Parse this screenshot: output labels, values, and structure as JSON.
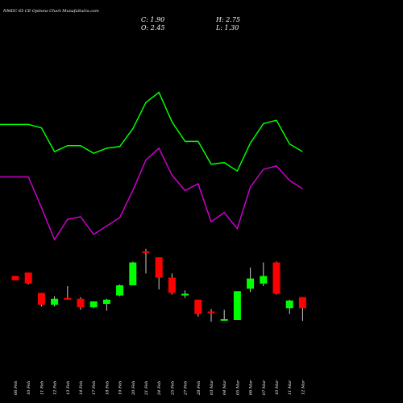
{
  "title": "NMDC 65 CE Options  Chart MunafaSutra.com",
  "ohlc": {
    "close": "C: 1.90",
    "high": "H: 2.75",
    "open": "O: 2.45",
    "low": "L: 1.30"
  },
  "colors": {
    "background": "#000000",
    "up": "#00ff00",
    "down": "#ff0000",
    "band_upper": "#00ff00",
    "band_lower": "#cc00cc",
    "wick": "#cccccc",
    "text": "#ffffff"
  },
  "chart_data": {
    "type": "candlestick",
    "categories": [
      "06 Feb",
      "10 Feb",
      "11 Feb",
      "12 Feb",
      "13 Feb",
      "14 Feb",
      "17 Feb",
      "18 Feb",
      "19 Feb",
      "20 Feb",
      "21 Feb",
      "24 Feb",
      "25 Feb",
      "27 Feb",
      "28 Feb",
      "03 Mar",
      "04 Mar",
      "05 Mar",
      "06 Mar",
      "07 Mar",
      "10 Mar",
      "11 Mar",
      "12 Mar"
    ],
    "candles": [
      {
        "open": 5.6,
        "high": 5.6,
        "low": 5.35,
        "close": 5.35
      },
      {
        "open": 5.8,
        "high": 5.8,
        "low": 5.1,
        "close": 5.15
      },
      {
        "open": 4.6,
        "high": 4.6,
        "low": 3.8,
        "close": 3.9
      },
      {
        "open": 3.9,
        "high": 4.4,
        "low": 3.8,
        "close": 4.25
      },
      {
        "open": 4.3,
        "high": 5.0,
        "low": 4.2,
        "close": 4.2
      },
      {
        "open": 4.25,
        "high": 4.35,
        "low": 3.6,
        "close": 3.75
      },
      {
        "open": 3.75,
        "high": 4.1,
        "low": 3.7,
        "close": 4.1
      },
      {
        "open": 3.95,
        "high": 4.25,
        "low": 3.55,
        "close": 4.2
      },
      {
        "open": 4.45,
        "high": 5.1,
        "low": 4.4,
        "close": 5.05
      },
      {
        "open": 5.05,
        "high": 6.45,
        "low": 5.05,
        "close": 6.4
      },
      {
        "open": 7.05,
        "high": 7.2,
        "low": 5.75,
        "close": 6.95
      },
      {
        "open": 6.7,
        "high": 6.7,
        "low": 4.8,
        "close": 5.5
      },
      {
        "open": 5.5,
        "high": 5.75,
        "low": 4.5,
        "close": 4.6
      },
      {
        "open": 4.45,
        "high": 4.75,
        "low": 4.3,
        "close": 4.55
      },
      {
        "open": 4.2,
        "high": 4.2,
        "low": 3.2,
        "close": 3.35
      },
      {
        "open": 3.5,
        "high": 3.65,
        "low": 2.9,
        "close": 3.42
      },
      {
        "open": 3.0,
        "high": 3.6,
        "low": 2.95,
        "close": 3.05
      },
      {
        "open": 3.0,
        "high": 4.7,
        "low": 3.0,
        "close": 4.7
      },
      {
        "open": 4.85,
        "high": 6.1,
        "low": 4.65,
        "close": 5.45
      },
      {
        "open": 5.15,
        "high": 6.4,
        "low": 5.0,
        "close": 5.6
      },
      {
        "open": 6.4,
        "high": 6.45,
        "low": 4.5,
        "close": 4.55
      },
      {
        "open": 3.7,
        "high": 4.2,
        "low": 3.35,
        "close": 4.15
      },
      {
        "open": 4.35,
        "high": 4.35,
        "low": 2.95,
        "close": 3.7
      }
    ],
    "bands": [
      {
        "name": "upper",
        "values": [
          14.55,
          14.55,
          14.35,
          12.95,
          13.3,
          13.3,
          12.85,
          13.15,
          13.25,
          14.3,
          15.85,
          16.45,
          14.7,
          13.55,
          13.55,
          12.2,
          12.3,
          11.8,
          13.45,
          14.6,
          14.8,
          13.4,
          12.95
        ]
      },
      {
        "name": "lower",
        "values": [
          11.45,
          11.45,
          9.65,
          7.75,
          8.95,
          9.1,
          8.05,
          8.55,
          9.05,
          10.65,
          12.45,
          13.15,
          11.55,
          10.65,
          11.05,
          8.8,
          9.35,
          8.4,
          10.85,
          11.9,
          12.1,
          11.25,
          10.75
        ]
      }
    ],
    "ylim": [
      0,
      20
    ]
  }
}
